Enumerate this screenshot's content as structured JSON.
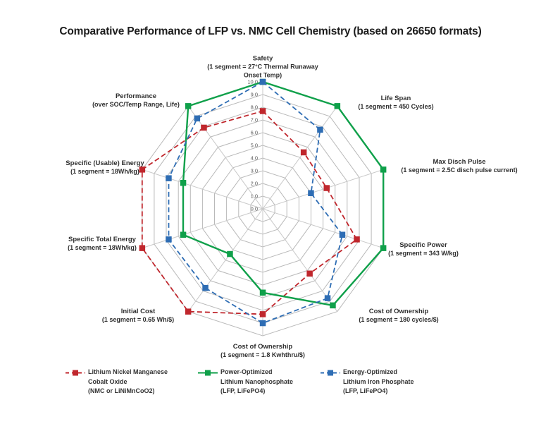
{
  "title": "Comparative Performance of LFP vs. NMC Cell Chemistry (based on 26650 formats)",
  "chart_data": {
    "type": "radar",
    "scale": {
      "min": 0,
      "max": 10,
      "step": 1,
      "tick_labels": [
        "0.0",
        "1.0",
        "2.0",
        "3.0",
        "4.0",
        "5.0",
        "6.0",
        "7.0",
        "8.0",
        "9.0",
        "10.0"
      ]
    },
    "axes": [
      {
        "label": "Safety",
        "sublabel": "(1 segment = 27°C Thermal Runaway Onset Temp)"
      },
      {
        "label": "Life Span",
        "sublabel": "(1 segment = 450 Cycles)"
      },
      {
        "label": "Max Disch Pulse",
        "sublabel": "(1 segment = 2.5C disch pulse current)"
      },
      {
        "label": "Specific Power",
        "sublabel": "(1 segment = 343 W/kg)"
      },
      {
        "label": "Cost of Ownership",
        "sublabel": "(1 segment = 180 cycles/$)"
      },
      {
        "label": "Cost of Ownership",
        "sublabel": "(1 segment = 1.8 Kwhthru/$)"
      },
      {
        "label": "Initial Cost",
        "sublabel": "(1 segment = 0.65 Wh/$)"
      },
      {
        "label": "Specific Total Energy",
        "sublabel": "(1 segment = 18Wh/kg)"
      },
      {
        "label": "Specific (Usable) Energy",
        "sublabel": "(1 segment = 18Wh/kg)"
      },
      {
        "label": "Performance",
        "sublabel": "(over SOC/Temp Range, Life)"
      }
    ],
    "series": [
      {
        "name": "Lithium Nickel Manganese Cobalt Oxide (NMC or LiNiMnCoO2)",
        "color": "#c0272d",
        "style": "dashed",
        "values": [
          7.7,
          5.5,
          5.3,
          7.8,
          6.3,
          8.3,
          10,
          10,
          10,
          7.9
        ]
      },
      {
        "name": "Power-Optimized Lithium Nanophosphate (LFP, LiFePO4)",
        "color": "#0fa04a",
        "style": "solid",
        "values": [
          10,
          10,
          10,
          10,
          9.4,
          6.6,
          4.4,
          6.6,
          6.6,
          10
        ]
      },
      {
        "name": "Energy-Optimized Lithium Iron Phosphate (LFP, LiFePO4)",
        "color": "#2e6db4",
        "style": "dashed",
        "values": [
          10,
          7.7,
          4.0,
          6.6,
          8.7,
          9.0,
          7.7,
          7.8,
          7.8,
          8.8
        ]
      }
    ],
    "legend": [
      {
        "lines": [
          "Lithium Nickel Manganese",
          "Cobalt Oxide",
          "(NMC or LiNiMnCoO2)"
        ]
      },
      {
        "lines": [
          "Power-Optimized",
          "Lithium Nanophosphate",
          "(LFP, LiFePO4)"
        ]
      },
      {
        "lines": [
          "Energy-Optimized",
          "Lithium Iron Phosphate",
          "(LFP, LiFePO4)"
        ]
      }
    ],
    "grid": "on",
    "legend_position": "bottom"
  }
}
